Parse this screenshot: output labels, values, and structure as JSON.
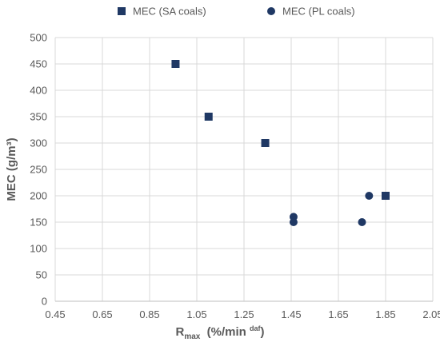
{
  "chart_data": {
    "type": "scatter",
    "xlabel_main": "R",
    "xlabel_sub": "max",
    "xlabel_rest": "  (%/min ",
    "xlabel_sup": "daf",
    "xlabel_close": ")",
    "ylabel": "MEC (g/m³)",
    "xlim": [
      0.45,
      2.05
    ],
    "ylim": [
      0,
      500
    ],
    "x_ticks": [
      0.45,
      0.65,
      0.85,
      1.05,
      1.25,
      1.45,
      1.65,
      1.85,
      2.05
    ],
    "x_tick_labels": [
      "0.45",
      "0.65",
      "0.85",
      "1.05",
      "1.25",
      "1.45",
      "1.65",
      "1.85",
      "2.05"
    ],
    "y_ticks": [
      0,
      50,
      100,
      150,
      200,
      250,
      300,
      350,
      400,
      450,
      500
    ],
    "y_tick_labels": [
      "0",
      "50",
      "100",
      "150",
      "200",
      "250",
      "300",
      "350",
      "400",
      "450",
      "500"
    ],
    "grid": true,
    "legend_position": "top",
    "series": [
      {
        "name": "MEC (SA coals)",
        "marker": "square",
        "color": "#1f3864",
        "points": [
          {
            "x": 0.96,
            "y": 450
          },
          {
            "x": 1.1,
            "y": 350
          },
          {
            "x": 1.34,
            "y": 300
          },
          {
            "x": 1.85,
            "y": 200
          }
        ]
      },
      {
        "name": "MEC (PL coals)",
        "marker": "circle",
        "color": "#1f3864",
        "points": [
          {
            "x": 1.46,
            "y": 160
          },
          {
            "x": 1.46,
            "y": 150
          },
          {
            "x": 1.75,
            "y": 150
          },
          {
            "x": 1.78,
            "y": 200
          }
        ]
      }
    ]
  }
}
